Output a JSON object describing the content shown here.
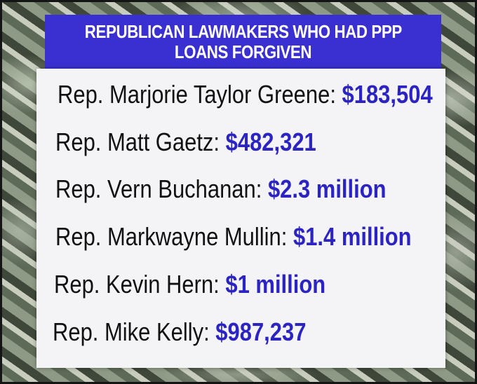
{
  "header": {
    "line1": "REPUBLICAN LAWMAKERS WHO HAD PPP",
    "line2": "LOANS FORGIVEN",
    "background_color": "#3a2fd0"
  },
  "list": {
    "amount_color": "#2b24c2",
    "rows": [
      {
        "name": "Rep. Marjorie Taylor Greene:",
        "amount": "$183,504"
      },
      {
        "name": "Rep. Matt Gaetz:",
        "amount": "$482,321"
      },
      {
        "name": "Rep. Vern Buchanan:",
        "amount": "$2.3 million"
      },
      {
        "name": "Rep. Markwayne Mullin:",
        "amount": "$1.4 million"
      },
      {
        "name": "Rep. Kevin Hern:",
        "amount": "$1 million"
      },
      {
        "name": "Rep. Mike Kelly:",
        "amount": "$987,237"
      }
    ]
  }
}
